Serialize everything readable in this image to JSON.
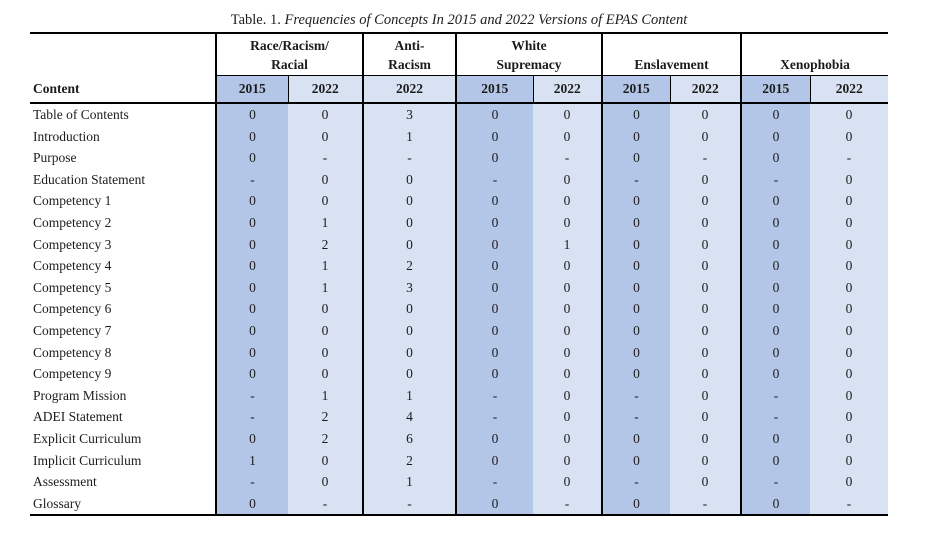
{
  "title": {
    "label_prefix": "Table. 1.",
    "label_italic": "Frequencies of Concepts In 2015 and 2022 Versions of EPAS Content"
  },
  "table": {
    "content_header": "Content",
    "groups": [
      {
        "id": "race-racism-racial",
        "lines": [
          "Race/Racism/",
          "Racial"
        ],
        "years": [
          "2015",
          "2022"
        ]
      },
      {
        "id": "anti-racism",
        "lines": [
          "Anti-",
          "Racism"
        ],
        "years": [
          "2022"
        ]
      },
      {
        "id": "white-supremacy",
        "lines": [
          "White",
          "Supremacy"
        ],
        "years": [
          "2015",
          "2022"
        ]
      },
      {
        "id": "enslavement",
        "lines": [
          "Enslavement"
        ],
        "years": [
          "2015",
          "2022"
        ]
      },
      {
        "id": "xenophobia",
        "lines": [
          "Xenophobia"
        ],
        "years": [
          "2015",
          "2022"
        ]
      }
    ],
    "rows": [
      {
        "label": "Table of Contents",
        "values": [
          "0",
          "0",
          "3",
          "0",
          "0",
          "0",
          "0",
          "0",
          "0"
        ]
      },
      {
        "label": "Introduction",
        "values": [
          "0",
          "0",
          "1",
          "0",
          "0",
          "0",
          "0",
          "0",
          "0"
        ]
      },
      {
        "label": "Purpose",
        "values": [
          "0",
          "-",
          "-",
          "0",
          "-",
          "0",
          "-",
          "0",
          "-"
        ]
      },
      {
        "label": "Education Statement",
        "values": [
          "-",
          "0",
          "0",
          "-",
          "0",
          "-",
          "0",
          "-",
          "0"
        ]
      },
      {
        "label": "Competency 1",
        "values": [
          "0",
          "0",
          "0",
          "0",
          "0",
          "0",
          "0",
          "0",
          "0"
        ]
      },
      {
        "label": "Competency 2",
        "values": [
          "0",
          "1",
          "0",
          "0",
          "0",
          "0",
          "0",
          "0",
          "0"
        ]
      },
      {
        "label": "Competency 3",
        "values": [
          "0",
          "2",
          "0",
          "0",
          "1",
          "0",
          "0",
          "0",
          "0"
        ]
      },
      {
        "label": "Competency 4",
        "values": [
          "0",
          "1",
          "2",
          "0",
          "0",
          "0",
          "0",
          "0",
          "0"
        ]
      },
      {
        "label": "Competency 5",
        "values": [
          "0",
          "1",
          "3",
          "0",
          "0",
          "0",
          "0",
          "0",
          "0"
        ]
      },
      {
        "label": "Competency 6",
        "values": [
          "0",
          "0",
          "0",
          "0",
          "0",
          "0",
          "0",
          "0",
          "0"
        ]
      },
      {
        "label": "Competency 7",
        "values": [
          "0",
          "0",
          "0",
          "0",
          "0",
          "0",
          "0",
          "0",
          "0"
        ]
      },
      {
        "label": "Competency 8",
        "values": [
          "0",
          "0",
          "0",
          "0",
          "0",
          "0",
          "0",
          "0",
          "0"
        ]
      },
      {
        "label": "Competency 9",
        "values": [
          "0",
          "0",
          "0",
          "0",
          "0",
          "0",
          "0",
          "0",
          "0"
        ]
      },
      {
        "label": "Program Mission",
        "values": [
          "-",
          "1",
          "1",
          "-",
          "0",
          "-",
          "0",
          "-",
          "0"
        ]
      },
      {
        "label": "ADEI Statement",
        "values": [
          "-",
          "2",
          "4",
          "-",
          "0",
          "-",
          "0",
          "-",
          "0"
        ]
      },
      {
        "label": "Explicit Curriculum",
        "values": [
          "0",
          "2",
          "6",
          "0",
          "0",
          "0",
          "0",
          "0",
          "0"
        ]
      },
      {
        "label": "Implicit Curriculum",
        "values": [
          "1",
          "0",
          "2",
          "0",
          "0",
          "0",
          "0",
          "0",
          "0"
        ]
      },
      {
        "label": "Assessment",
        "values": [
          "-",
          "0",
          "1",
          "-",
          "0",
          "-",
          "0",
          "-",
          "0"
        ]
      },
      {
        "label": "Glossary",
        "values": [
          "0",
          "-",
          "-",
          "0",
          "-",
          "0",
          "-",
          "0",
          "-"
        ]
      }
    ]
  },
  "colors": {
    "cell_2015": "#b4c6e7",
    "cell_2022": "#d9e2f3",
    "border": "#000000"
  }
}
